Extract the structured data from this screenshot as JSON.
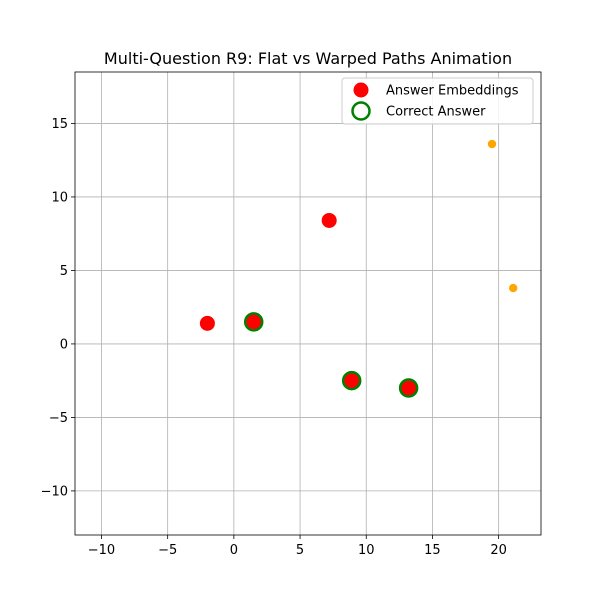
{
  "chart_data": {
    "type": "scatter",
    "title": "Multi-Question R9: Flat vs Warped Paths Animation",
    "xlabel": "",
    "ylabel": "",
    "xlim": [
      -12,
      23.2
    ],
    "ylim": [
      -13,
      18.5
    ],
    "xticks": [
      -10,
      -5,
      0,
      5,
      10,
      15,
      20
    ],
    "yticks": [
      -10,
      -5,
      0,
      5,
      10,
      15
    ],
    "x_tick_labels": [
      "−10",
      "−5",
      "0",
      "5",
      "10",
      "15",
      "20"
    ],
    "y_tick_labels": [
      "−10",
      "−5",
      "0",
      "5",
      "10",
      "15"
    ],
    "grid": true,
    "legend": {
      "position": "upper right",
      "entries": [
        {
          "label": "Answer Embeddings",
          "marker": "filled-circle",
          "color": "#ff0000"
        },
        {
          "label": "Correct Answer",
          "marker": "hollow-circle",
          "color": "#008000"
        }
      ]
    },
    "series": [
      {
        "name": "Answer Embeddings",
        "color": "#ff0000",
        "marker": "filled-circle",
        "points": [
          {
            "x": -2.0,
            "y": 1.4
          },
          {
            "x": 1.5,
            "y": 1.5
          },
          {
            "x": 7.2,
            "y": 8.4
          },
          {
            "x": 8.9,
            "y": -2.5
          },
          {
            "x": 13.2,
            "y": -3.0
          }
        ]
      },
      {
        "name": "Correct Answer",
        "color": "#008000",
        "marker": "hollow-circle",
        "points": [
          {
            "x": 1.5,
            "y": 1.5
          },
          {
            "x": 8.9,
            "y": -2.5
          },
          {
            "x": 13.2,
            "y": -3.0
          }
        ]
      },
      {
        "color": "#ffa500",
        "marker": "small-filled-circle",
        "points": [
          {
            "x": 19.5,
            "y": 13.6
          },
          {
            "x": 21.1,
            "y": 3.8
          }
        ]
      }
    ]
  }
}
